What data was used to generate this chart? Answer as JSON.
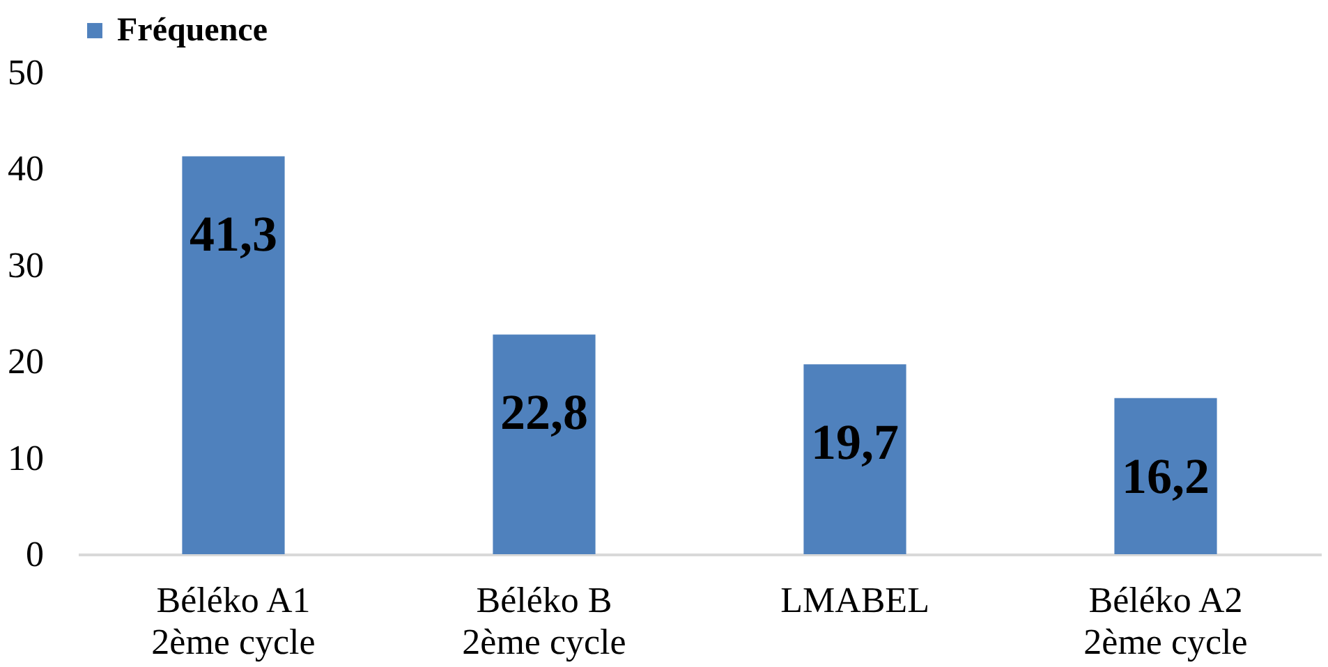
{
  "chart_data": {
    "type": "bar",
    "categories": [
      "Béléko A1\n2ème cycle",
      "Béléko B\n2ème cycle",
      "LMABEL",
      "Béléko A2\n2ème cycle"
    ],
    "series": [
      {
        "name": "Fréquence",
        "color": "#4f81bd",
        "values": [
          41.3,
          22.8,
          19.7,
          16.2
        ],
        "value_labels": [
          "41,3",
          "22,8",
          "19,7",
          "16,2"
        ]
      }
    ],
    "ylim": [
      0,
      50
    ],
    "yticks": [
      0,
      10,
      20,
      30,
      40,
      50
    ],
    "grid": false,
    "legend": "top"
  }
}
